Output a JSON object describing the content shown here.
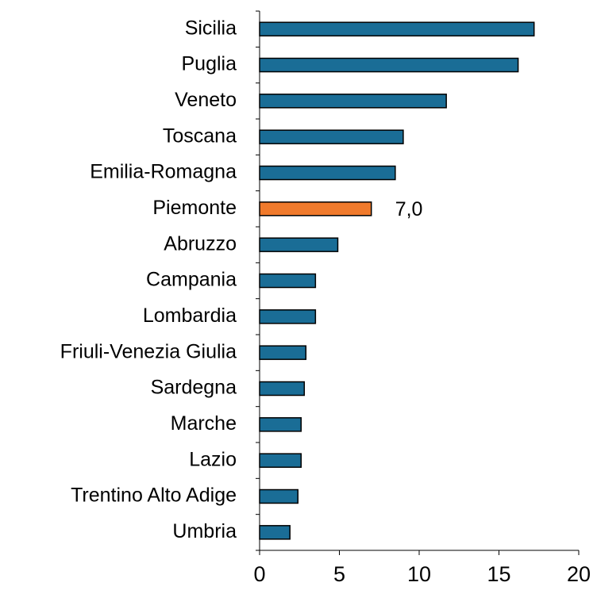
{
  "chart_data": {
    "type": "barh",
    "categories": [
      "Sicilia",
      "Puglia",
      "Veneto",
      "Toscana",
      "Emilia-Romagna",
      "Piemonte",
      "Abruzzo",
      "Campania",
      "Lombardia",
      "Friuli-Venezia Giulia",
      "Sardegna",
      "Marche",
      "Lazio",
      "Trentino Alto Adige",
      "Umbria"
    ],
    "values": [
      17.2,
      16.2,
      11.7,
      9.0,
      8.5,
      7.0,
      4.9,
      3.5,
      3.5,
      2.9,
      2.8,
      2.6,
      2.6,
      2.4,
      1.9
    ],
    "value_labels": [
      null,
      null,
      null,
      null,
      null,
      "7,0",
      null,
      null,
      null,
      null,
      null,
      null,
      null,
      null,
      null
    ],
    "colors": [
      "#1a6d96",
      "#1a6d96",
      "#1a6d96",
      "#1a6d96",
      "#1a6d96",
      "#f07a2c",
      "#1a6d96",
      "#1a6d96",
      "#1a6d96",
      "#1a6d96",
      "#1a6d96",
      "#1a6d96",
      "#1a6d96",
      "#1a6d96",
      "#1a6d96"
    ],
    "xlim": [
      0,
      20
    ],
    "xticks": [
      0,
      5,
      10,
      15,
      20
    ],
    "grid": false
  }
}
